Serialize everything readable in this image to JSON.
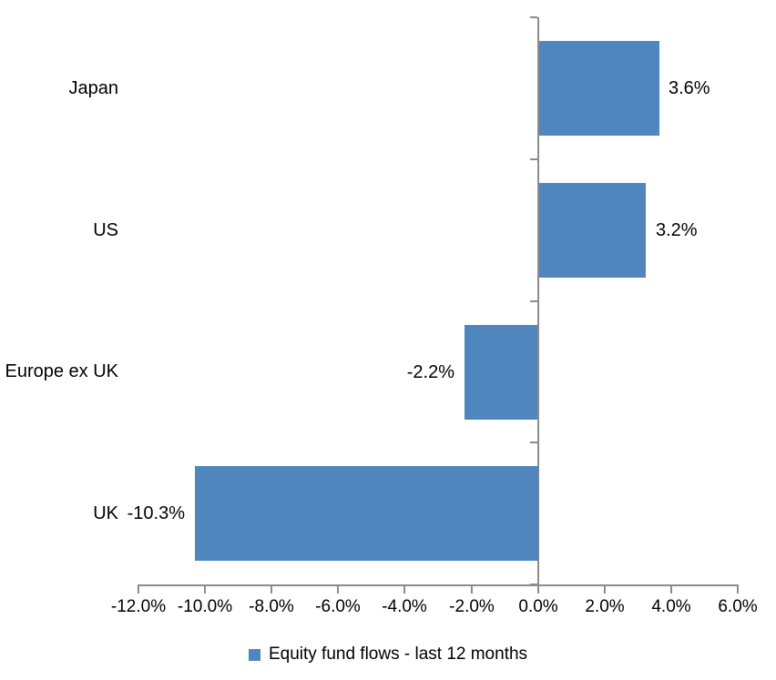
{
  "chart_data": {
    "type": "bar",
    "orientation": "horizontal",
    "title": "",
    "categories": [
      "Japan",
      "US",
      "Europe ex UK",
      "UK"
    ],
    "series": [
      {
        "name": "Equity fund flows - last 12 months",
        "values": [
          3.6,
          3.2,
          -2.2,
          -10.3
        ]
      }
    ],
    "value_labels": [
      "3.6%",
      "3.2%",
      "-2.2%",
      "-10.3%"
    ],
    "xlim": [
      -12,
      6
    ],
    "x_ticks": [
      -12,
      -10,
      -8,
      -6,
      -4,
      -2,
      0,
      2,
      4,
      6
    ],
    "x_tick_labels": [
      "-12.0%",
      "-10.0%",
      "-8.0%",
      "-6.0%",
      "-4.0%",
      "-2.0%",
      "0.0%",
      "2.0%",
      "4.0%",
      "6.0%"
    ],
    "grid": false,
    "legend_position": "bottom-center",
    "colors": {
      "bar": "#4E86BD",
      "axis": "#8C8C8C",
      "text": "#000000",
      "background": "#FFFFFF"
    }
  },
  "legend": {
    "label": "Equity fund flows - last 12 months"
  }
}
